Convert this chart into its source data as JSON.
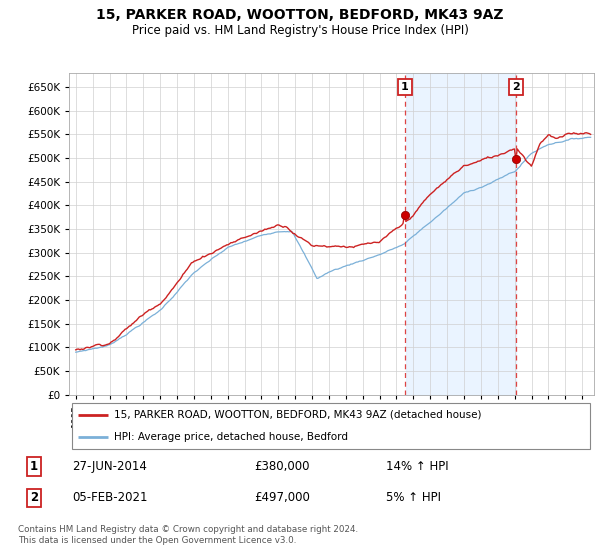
{
  "title": "15, PARKER ROAD, WOOTTON, BEDFORD, MK43 9AZ",
  "subtitle": "Price paid vs. HM Land Registry's House Price Index (HPI)",
  "background_color": "#ffffff",
  "plot_bg_color": "#ffffff",
  "grid_color": "#d0d0d0",
  "ylim": [
    0,
    680000
  ],
  "yticks": [
    0,
    50000,
    100000,
    150000,
    200000,
    250000,
    300000,
    350000,
    400000,
    450000,
    500000,
    550000,
    600000,
    650000
  ],
  "sale1_t": 2014.49,
  "sale1_price": 380000,
  "sale2_t": 2021.09,
  "sale2_price": 497000,
  "legend_line1": "15, PARKER ROAD, WOOTTON, BEDFORD, MK43 9AZ (detached house)",
  "legend_line2": "HPI: Average price, detached house, Bedford",
  "footnote": "Contains HM Land Registry data © Crown copyright and database right 2024.\nThis data is licensed under the Open Government Licence v3.0.",
  "red_line_color": "#cc2222",
  "blue_line_color": "#7bb0d8",
  "fill_color": "#ddeeff",
  "sale_dot_color": "#cc0000",
  "vline_color": "#dd4444",
  "title_fontsize": 10,
  "subtitle_fontsize": 9
}
